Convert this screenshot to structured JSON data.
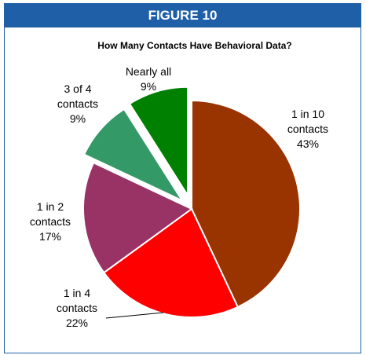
{
  "figure_label": "FIGURE 10",
  "chart_data": {
    "type": "pie",
    "title": "How Many Contacts Have Behavioral Data?",
    "slices": [
      {
        "label_lines": [
          "1 in 10",
          "contacts"
        ],
        "pct_label": "43%",
        "value": 43,
        "color": "#993300"
      },
      {
        "label_lines": [
          "1 in 4",
          "contacts"
        ],
        "pct_label": "22%",
        "value": 22,
        "color": "#ff0000"
      },
      {
        "label_lines": [
          "1 in 2",
          "contacts"
        ],
        "pct_label": "17%",
        "value": 17,
        "color": "#993366"
      },
      {
        "label_lines": [
          "3 of 4",
          "contacts"
        ],
        "pct_label": "9%",
        "value": 9,
        "color": "#339966"
      },
      {
        "label_lines": [
          "Nearly all"
        ],
        "pct_label": "9%",
        "value": 9,
        "color": "#008000"
      }
    ]
  }
}
